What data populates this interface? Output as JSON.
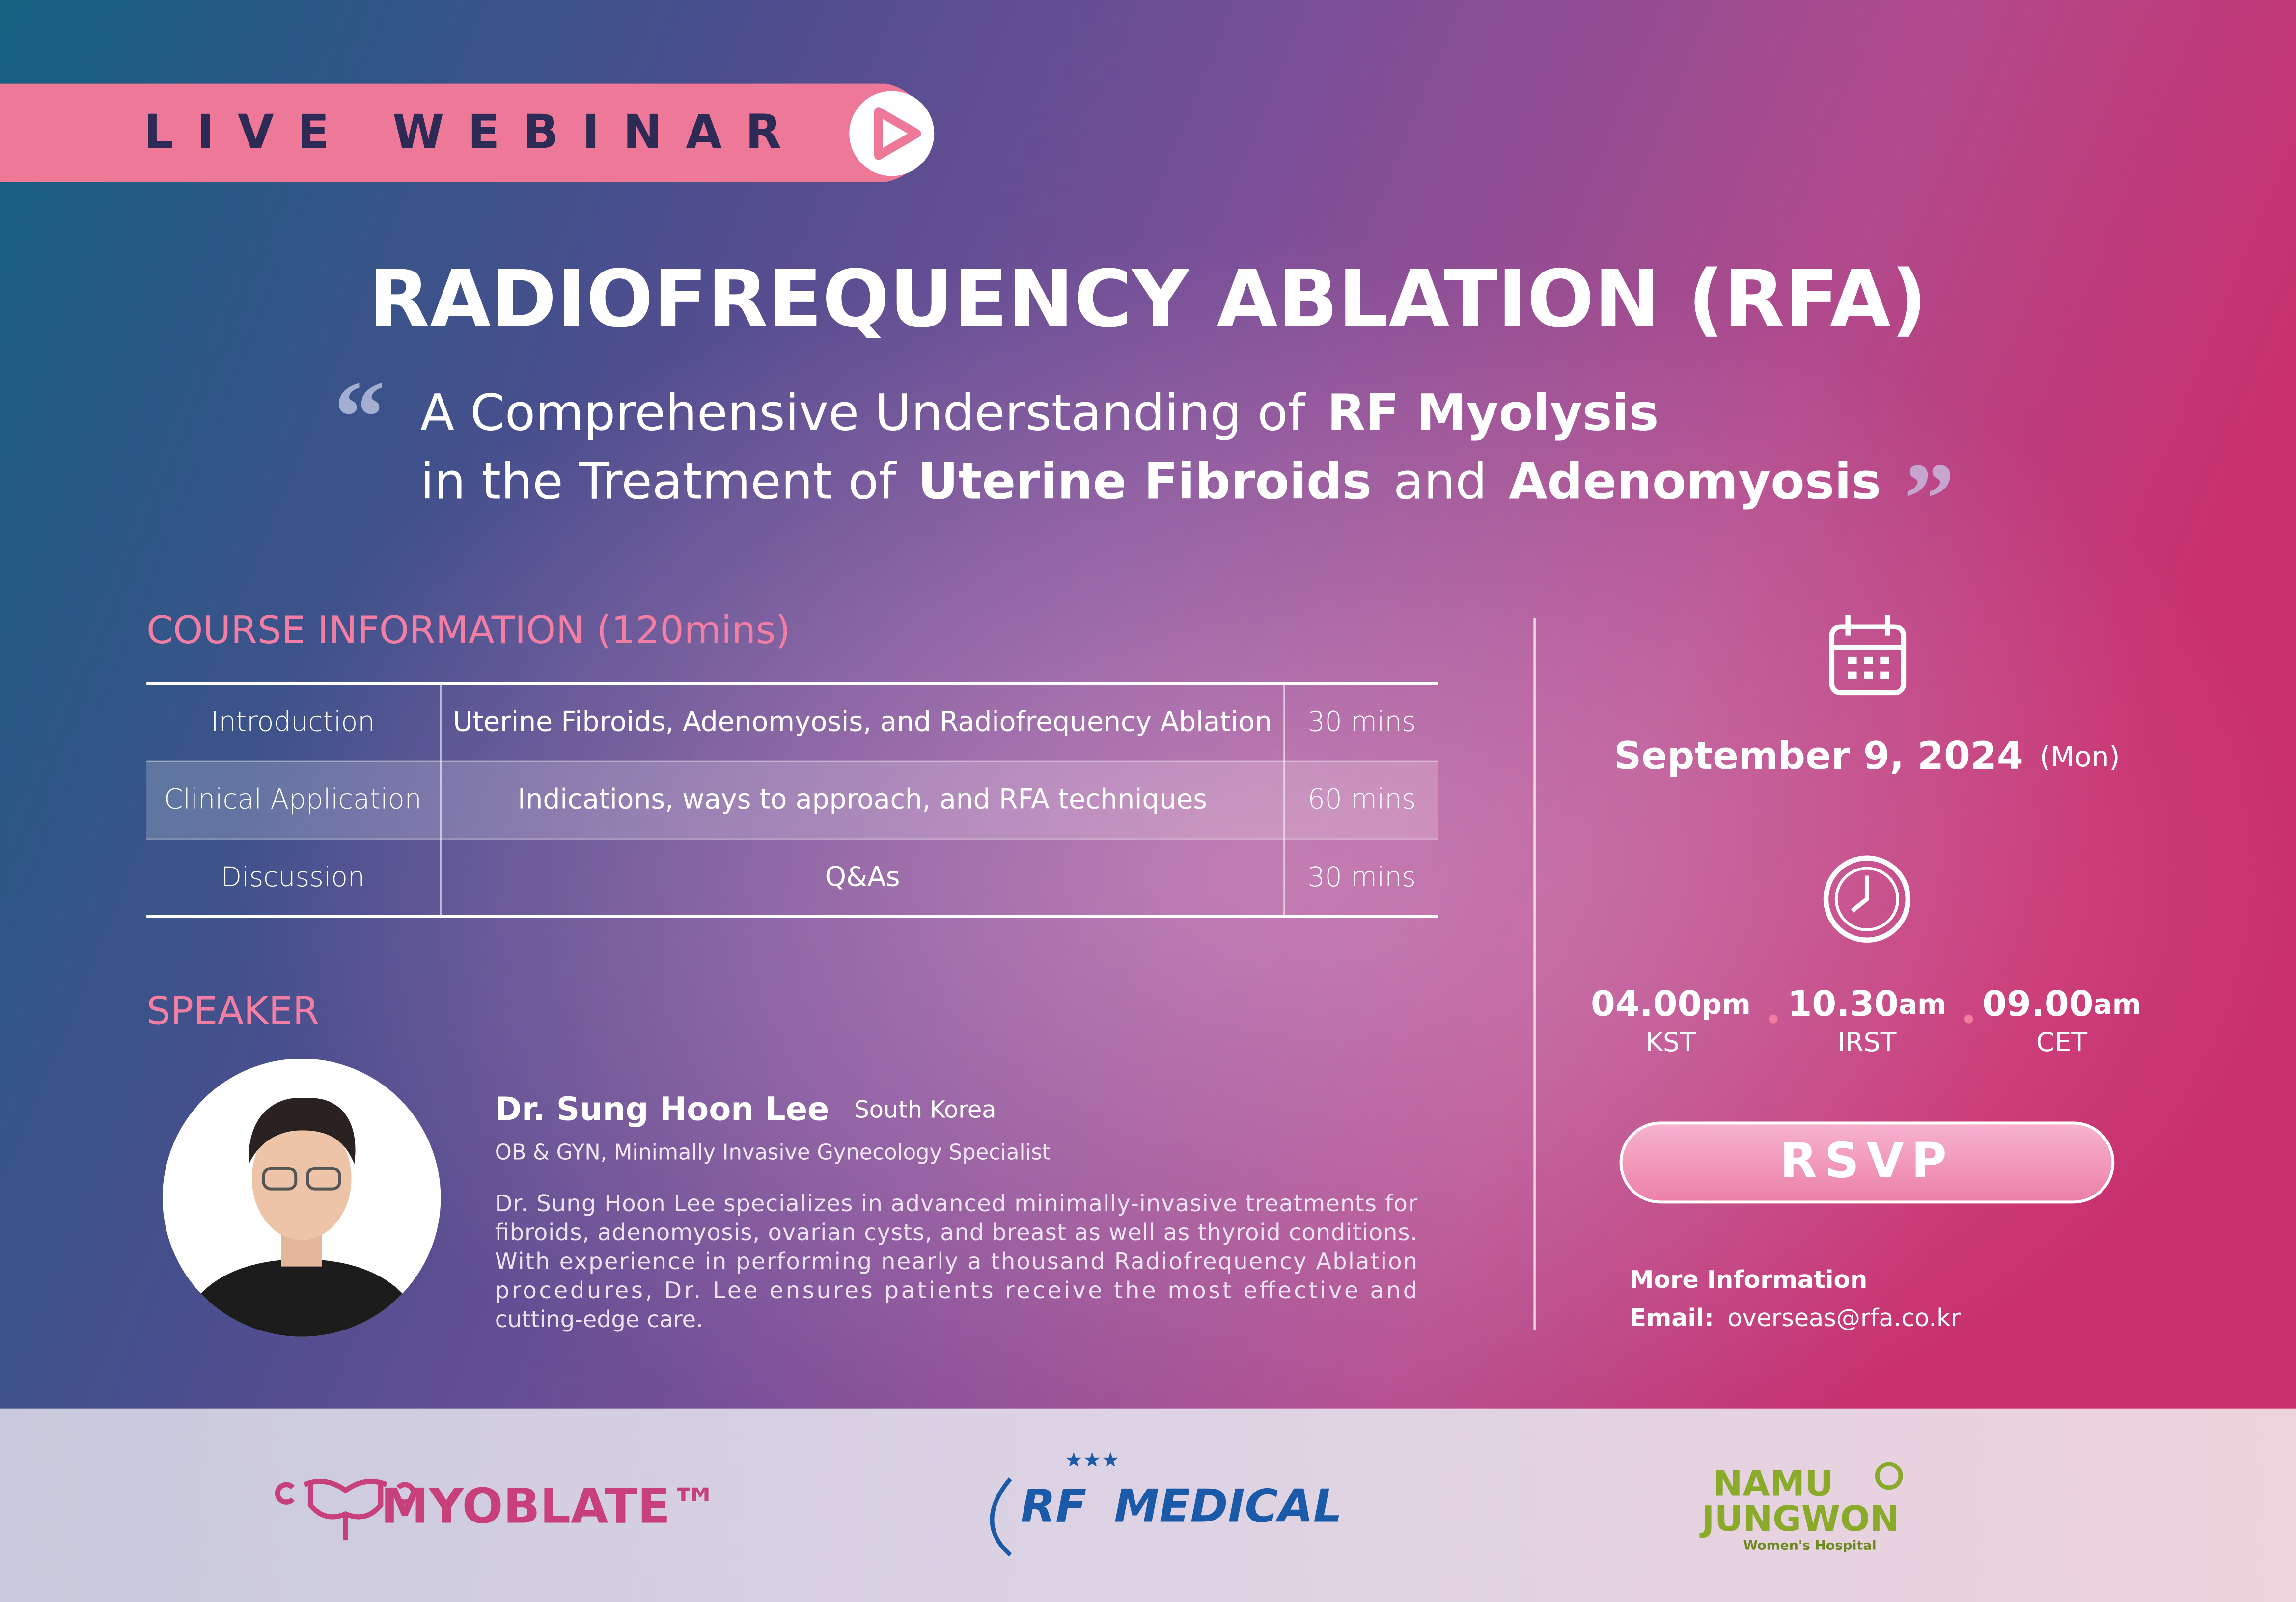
{
  "banner": "LIVE WEBINAR",
  "title": "RADIOFREQUENCY ABLATION (RFA)",
  "subtitle": {
    "open_quote": "“",
    "close_quote": "”",
    "line1": [
      "A Comprehensive Understanding of",
      "RF Myolysis"
    ],
    "line2": [
      "in the Treatment of",
      "Uterine Fibroids",
      "and",
      "Adenomyosis"
    ]
  },
  "course": {
    "heading": "COURSE INFORMATION (120mins)",
    "rows": [
      [
        "Introduction",
        "Uterine Fibroids, Adenomyosis, and Radiofrequency Ablation",
        "30 mins"
      ],
      [
        "Clinical Application",
        "Indications, ways to approach, and RFA techniques",
        "60 mins"
      ],
      [
        "Discussion",
        "Q&As",
        "30 mins"
      ]
    ]
  },
  "speaker": {
    "heading": "SPEAKER",
    "name": "Dr. Sung Hoon Lee",
    "country": "South Korea",
    "role": "OB & GYN, Minimally Invasive Gynecology Specialist",
    "bio": [
      "Dr. Sung Hoon Lee specializes in advanced minimally-invasive treatments for",
      "fibroids, adenomyosis, ovarian cysts, and breast as well as thyroid conditions.",
      "With experience in performing nearly a thousand Radiofrequency Ablation",
      "procedures, Dr. Lee ensures patients receive the most effective and",
      "cutting-edge care."
    ]
  },
  "event": {
    "date": "September 9, 2024",
    "day": "(Mon)",
    "times": [
      {
        "time": "04.00",
        "ampm": "pm",
        "zone": "KST"
      },
      {
        "time": "10.30",
        "ampm": "am",
        "zone": "IRST"
      },
      {
        "time": "09.00",
        "ampm": "am",
        "zone": "CET"
      }
    ],
    "rsvp": "RSVP",
    "more_info": "More Information",
    "email_label": "Email:",
    "email": "overseas@rfa.co.kr"
  },
  "footer": {
    "myoblate": "MYOBLATE™",
    "rf_medical": [
      "RF",
      "MEDICAL"
    ],
    "namu": [
      "NAMU",
      "JUNGWON",
      "Women's Hospital"
    ]
  }
}
